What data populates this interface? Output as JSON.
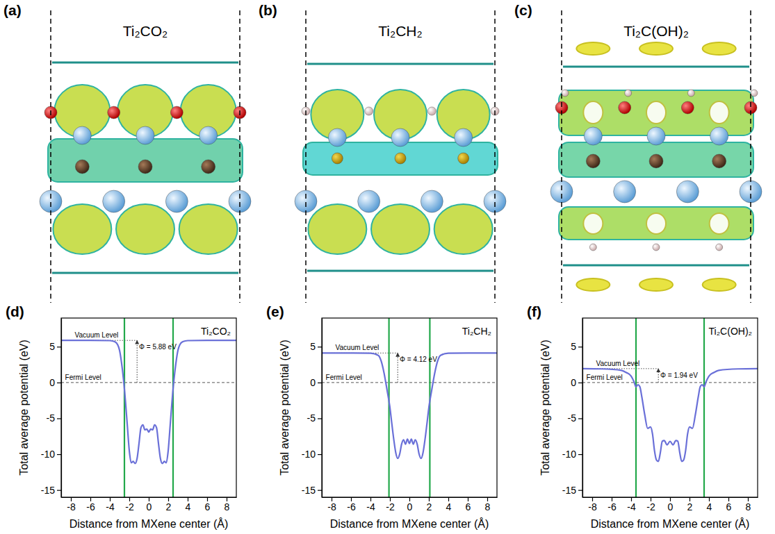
{
  "structures": [
    {
      "label": "(a)",
      "title": "Ti₂CO₂"
    },
    {
      "label": "(b)",
      "title": "Ti₂CH₂"
    },
    {
      "label": "(c)",
      "title": "Ti₂C(OH)₂"
    }
  ],
  "chart_data": [
    {
      "type": "line",
      "label": "(d)",
      "title": "Ti₂CO₂",
      "x_label": "Distance from MXene center (Å)",
      "y_label": "Total average potential (eV)",
      "xlim": [
        -9,
        9
      ],
      "xticks": [
        -8,
        -6,
        -4,
        -2,
        0,
        2,
        4,
        6,
        8
      ],
      "ylim": [
        -16,
        9
      ],
      "yticks": [
        -15,
        -10,
        -5,
        0,
        5
      ],
      "color": "#6a70d8",
      "x": [
        -9,
        -6,
        -4,
        -3.5,
        -3.2,
        -3,
        -2.8,
        -2.6,
        -2.4,
        -2.2,
        -2,
        -1.8,
        -1.6,
        -1.4,
        -1.2,
        -1,
        -0.8,
        -0.6,
        -0.4,
        -0.2,
        0,
        0.2,
        0.4,
        0.6,
        0.8,
        1,
        1.2,
        1.4,
        1.6,
        1.8,
        2,
        2.2,
        2.4,
        2.6,
        2.8,
        3,
        3.2,
        3.5,
        4,
        6,
        9
      ],
      "values": [
        5.88,
        5.88,
        5.85,
        5.7,
        5.3,
        4.5,
        2.8,
        0.5,
        -2.5,
        -6,
        -9.5,
        -11.2,
        -11,
        -11.3,
        -10.6,
        -8.5,
        -6.3,
        -5.9,
        -6.6,
        -6.5,
        -6.9,
        -6.5,
        -6.6,
        -5.9,
        -6.3,
        -8.5,
        -10.6,
        -11.3,
        -11,
        -11.2,
        -9.5,
        -6,
        -2.5,
        0.5,
        2.8,
        4.5,
        5.3,
        5.7,
        5.85,
        5.88,
        5.88
      ],
      "vacuum_level": 5.88,
      "fermi_level": 0,
      "surface_boundaries": [
        -2.5,
        2.5
      ],
      "annotations": [
        "Vacuum Level",
        "Fermi Level",
        "Φ = 5.88 eV"
      ]
    },
    {
      "type": "line",
      "label": "(e)",
      "title": "Ti₂CH₂",
      "x_label": "Distance from MXene center (Å)",
      "y_label": "Total average potential (eV)",
      "xlim": [
        -9,
        9
      ],
      "xticks": [
        -8,
        -6,
        -4,
        -2,
        0,
        2,
        4,
        6,
        8
      ],
      "ylim": [
        -16,
        9
      ],
      "yticks": [
        -15,
        -10,
        -5,
        0,
        5
      ],
      "color": "#6a70d8",
      "x": [
        -9,
        -6,
        -4,
        -3.2,
        -2.9,
        -2.6,
        -2.3,
        -2,
        -1.8,
        -1.6,
        -1.4,
        -1.2,
        -1,
        -0.8,
        -0.6,
        -0.4,
        -0.2,
        0,
        0.2,
        0.4,
        0.6,
        0.8,
        1,
        1.2,
        1.4,
        1.6,
        1.8,
        2,
        2.3,
        2.6,
        2.9,
        3.2,
        4,
        6,
        9
      ],
      "values": [
        4.12,
        4.12,
        4.1,
        3.8,
        3,
        1.3,
        -1,
        -3.5,
        -5.8,
        -8,
        -9.8,
        -10.6,
        -10,
        -8.6,
        -8,
        -8.6,
        -7.9,
        -8.5,
        -7.9,
        -8.6,
        -8,
        -8.6,
        -10,
        -10.6,
        -9.8,
        -8,
        -5.8,
        -3.5,
        -1,
        1.3,
        3,
        3.8,
        4.1,
        4.12,
        4.12
      ],
      "vacuum_level": 4.12,
      "fermi_level": 0,
      "surface_boundaries": [
        -2.1,
        2.1
      ],
      "annotations": [
        "Vacuum Level",
        "Fermi Level",
        "Φ = 4.12 eV"
      ]
    },
    {
      "type": "line",
      "label": "(f)",
      "title": "Ti₂C(OH)₂",
      "x_label": "Distance from MXene center (Å)",
      "y_label": "Total average potential (eV)",
      "xlim": [
        -9,
        9
      ],
      "xticks": [
        -8,
        -6,
        -4,
        -2,
        0,
        2,
        4,
        6,
        8
      ],
      "ylim": [
        -16,
        9
      ],
      "yticks": [
        -15,
        -10,
        -5,
        0,
        5
      ],
      "color": "#6a70d8",
      "x": [
        -9,
        -7,
        -5,
        -4.5,
        -4,
        -3.7,
        -3.5,
        -3.3,
        -3.1,
        -2.9,
        -2.6,
        -2.3,
        -2,
        -1.8,
        -1.6,
        -1.4,
        -1.2,
        -1,
        -0.8,
        -0.6,
        -0.3,
        0,
        0.3,
        0.6,
        0.8,
        1,
        1.2,
        1.4,
        1.6,
        1.8,
        2,
        2.3,
        2.6,
        2.9,
        3.1,
        3.3,
        3.5,
        3.7,
        4,
        4.5,
        5,
        7,
        9
      ],
      "values": [
        1.94,
        1.9,
        1.7,
        1.4,
        0.9,
        0.1,
        -0.6,
        -0.3,
        -0.6,
        -2,
        -4.5,
        -6.4,
        -6.2,
        -7.2,
        -9.5,
        -10.8,
        -11,
        -9.8,
        -8.2,
        -8.1,
        -8.7,
        -8.2,
        -8.7,
        -8.1,
        -8.2,
        -9.8,
        -11,
        -10.8,
        -9.5,
        -7.2,
        -6.2,
        -6.4,
        -4.5,
        -2,
        -0.6,
        -0.3,
        -0.6,
        0.1,
        0.9,
        1.4,
        1.7,
        1.9,
        1.94
      ],
      "vacuum_level": 1.94,
      "fermi_level": 0,
      "surface_boundaries": [
        -3.5,
        3.5
      ],
      "annotations": [
        "Vacuum Level",
        "Fermi Level",
        "Φ = 1.94 eV"
      ]
    }
  ]
}
